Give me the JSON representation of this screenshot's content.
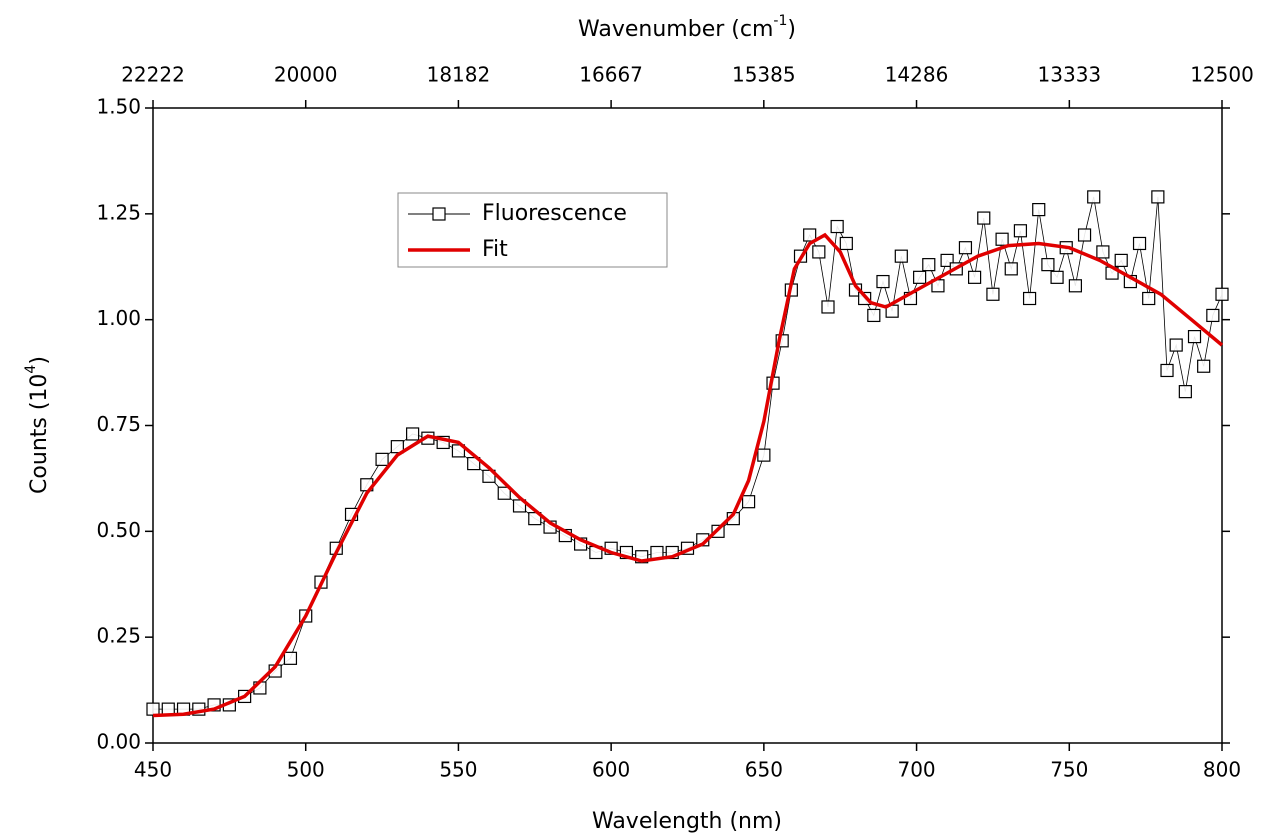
{
  "chart_data": {
    "type": "scatter-line",
    "xlabel": "Wavelength (nm)",
    "ylabel": {
      "text": "Counts (10",
      "sup": "4",
      "after": ")"
    },
    "x2label": {
      "text": "Wavenumber (cm",
      "sup": "-1",
      "after": ")"
    },
    "xlim": [
      450,
      800
    ],
    "xticks": [
      450,
      500,
      550,
      600,
      650,
      700,
      750,
      800
    ],
    "x2ticks": [
      22222,
      20000,
      18182,
      16667,
      15385,
      14286,
      13333,
      12500
    ],
    "ylim": [
      0,
      1.5
    ],
    "yticks": [
      {
        "value": 0,
        "label": "0.00"
      },
      0.25,
      {
        "value": 0.5,
        "label": "0.50"
      },
      0.75,
      {
        "value": 1,
        "label": "1.00"
      },
      1.25,
      {
        "value": 1.5,
        "label": "1.50"
      }
    ],
    "grid": false,
    "legend": "upper-left",
    "series": [
      {
        "name": "Fluorescence",
        "color": "#000000",
        "marker": "square",
        "x": [
          450,
          455,
          460,
          465,
          470,
          475,
          480,
          485,
          490,
          495,
          500,
          505,
          510,
          515,
          520,
          525,
          530,
          535,
          540,
          545,
          550,
          555,
          560,
          565,
          570,
          575,
          580,
          585,
          590,
          595,
          600,
          605,
          610,
          615,
          620,
          625,
          630,
          635,
          640,
          645,
          650,
          653,
          656,
          659,
          662,
          665,
          668,
          671,
          674,
          677,
          680,
          683,
          686,
          689,
          692,
          695,
          698,
          701,
          704,
          707,
          710,
          713,
          716,
          719,
          722,
          725,
          728,
          731,
          734,
          737,
          740,
          743,
          746,
          749,
          752,
          755,
          758,
          761,
          764,
          767,
          770,
          773,
          776,
          779,
          782,
          785,
          788,
          791,
          794,
          797,
          800
        ],
        "values": [
          0.08,
          0.08,
          0.08,
          0.08,
          0.09,
          0.09,
          0.11,
          0.13,
          0.17,
          0.2,
          0.3,
          0.38,
          0.46,
          0.54,
          0.61,
          0.67,
          0.7,
          0.73,
          0.72,
          0.71,
          0.69,
          0.66,
          0.63,
          0.59,
          0.56,
          0.53,
          0.51,
          0.49,
          0.47,
          0.45,
          0.46,
          0.45,
          0.44,
          0.45,
          0.45,
          0.46,
          0.48,
          0.5,
          0.53,
          0.57,
          0.68,
          0.85,
          0.95,
          1.07,
          1.15,
          1.2,
          1.16,
          1.03,
          1.22,
          1.18,
          1.07,
          1.05,
          1.01,
          1.09,
          1.02,
          1.15,
          1.05,
          1.1,
          1.13,
          1.08,
          1.14,
          1.12,
          1.17,
          1.1,
          1.24,
          1.06,
          1.19,
          1.12,
          1.21,
          1.05,
          1.26,
          1.13,
          1.1,
          1.17,
          1.08,
          1.2,
          1.29,
          1.16,
          1.11,
          1.14,
          1.09,
          1.18,
          1.05,
          1.29,
          0.88,
          0.94,
          0.83,
          0.96,
          0.89,
          1.01,
          1.06
        ]
      },
      {
        "name": "Fit",
        "color": "#e00000",
        "marker": "none",
        "x": [
          450,
          460,
          470,
          480,
          490,
          500,
          510,
          520,
          530,
          540,
          550,
          560,
          570,
          580,
          590,
          600,
          610,
          620,
          630,
          640,
          645,
          650,
          655,
          660,
          665,
          670,
          675,
          680,
          685,
          690,
          700,
          710,
          720,
          730,
          740,
          750,
          760,
          770,
          780,
          790,
          800
        ],
        "values": [
          0.065,
          0.068,
          0.08,
          0.11,
          0.18,
          0.3,
          0.45,
          0.59,
          0.68,
          0.725,
          0.71,
          0.65,
          0.58,
          0.52,
          0.48,
          0.45,
          0.43,
          0.44,
          0.47,
          0.54,
          0.62,
          0.76,
          0.95,
          1.12,
          1.18,
          1.2,
          1.16,
          1.08,
          1.04,
          1.03,
          1.07,
          1.11,
          1.15,
          1.175,
          1.18,
          1.17,
          1.14,
          1.1,
          1.06,
          1.0,
          0.94
        ]
      }
    ]
  }
}
